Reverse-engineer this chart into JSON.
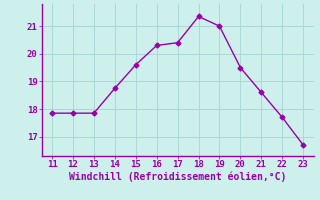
{
  "x": [
    11,
    12,
    13,
    14,
    15,
    16,
    17,
    18,
    19,
    20,
    21,
    22,
    23
  ],
  "y": [
    17.85,
    17.85,
    17.85,
    18.75,
    19.6,
    20.3,
    20.4,
    21.35,
    21.0,
    19.5,
    18.6,
    17.7,
    16.7
  ],
  "line_color": "#9900aa",
  "marker": "D",
  "marker_size": 2.5,
  "bg_color": "#cef0ec",
  "grid_color": "#aad8d4",
  "axis_label_color": "#9900aa",
  "tick_color": "#9900aa",
  "spine_color": "#9900aa",
  "xlabel": "Windchill (Refroidissement éolien,°C)",
  "xlim": [
    10.5,
    23.5
  ],
  "ylim": [
    16.3,
    21.8
  ],
  "yticks": [
    17,
    18,
    19,
    20,
    21
  ],
  "xticks": [
    11,
    12,
    13,
    14,
    15,
    16,
    17,
    18,
    19,
    20,
    21,
    22,
    23
  ],
  "tick_fontsize": 6.5,
  "label_fontsize": 7.0,
  "linewidth": 1.0
}
